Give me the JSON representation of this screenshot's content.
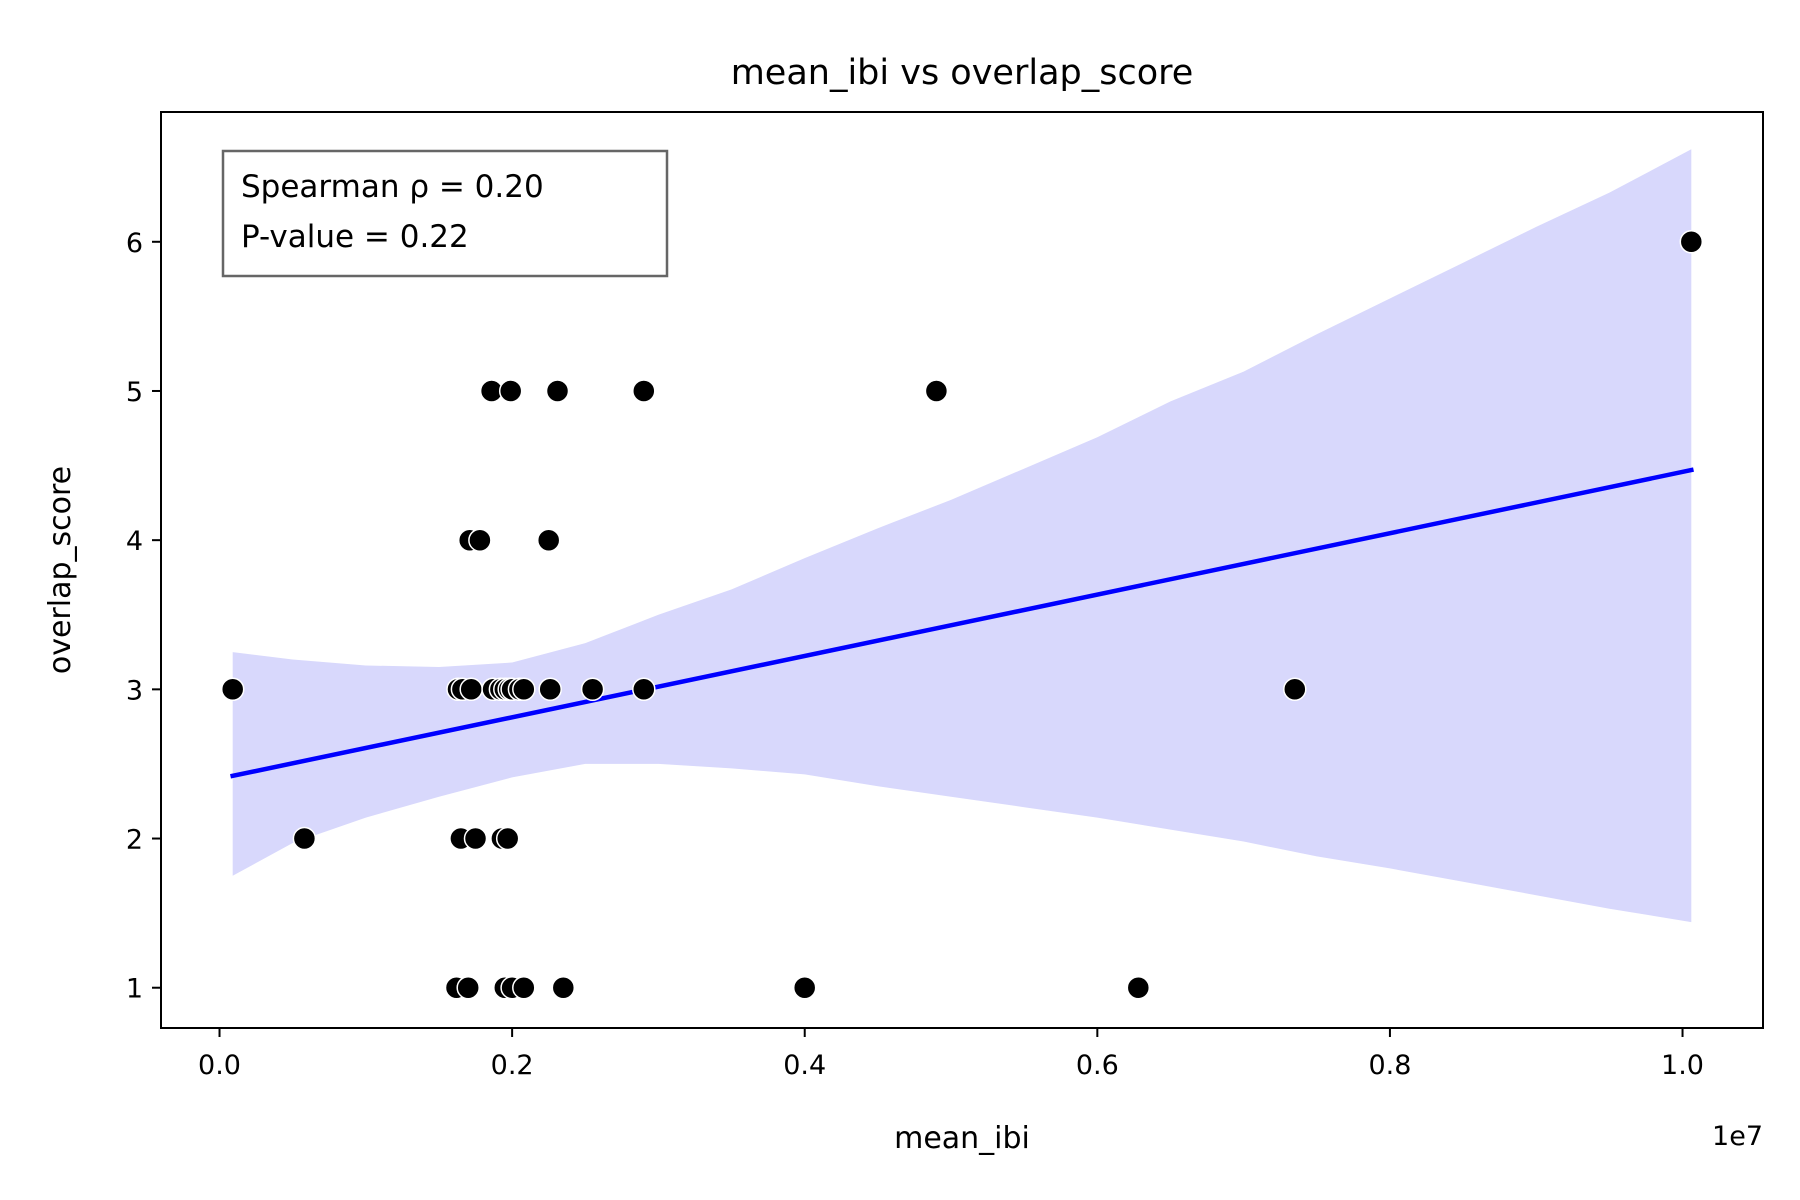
{
  "chart_data": {
    "type": "scatter",
    "title": "mean_ibi vs overlap_score",
    "xlabel": "mean_ibi",
    "ylabel": "overlap_score",
    "x_multiplier_label": "1e7",
    "xlim": [
      -0.04,
      1.055
    ],
    "ylim": [
      0.73,
      6.87
    ],
    "x_ticks": [
      0.0,
      0.2,
      0.4,
      0.6,
      0.8,
      1.0
    ],
    "x_tick_labels": [
      "0.0",
      "0.2",
      "0.4",
      "0.6",
      "0.8",
      "1.0"
    ],
    "y_ticks": [
      1,
      2,
      3,
      4,
      5,
      6
    ],
    "y_tick_labels": [
      "1",
      "2",
      "3",
      "4",
      "5",
      "6"
    ],
    "grid": false,
    "annotation": {
      "lines": [
        "Spearman ρ = 0.20",
        "P-value = 0.22"
      ]
    },
    "points": {
      "x": [
        0.009,
        0.058,
        0.163,
        0.166,
        0.172,
        0.187,
        0.192,
        0.195,
        0.198,
        0.2,
        0.205,
        0.208,
        0.226,
        0.255,
        0.29,
        0.735,
        0.165,
        0.175,
        0.193,
        0.197,
        0.171,
        0.178,
        0.225,
        0.186,
        0.199,
        0.231,
        0.29,
        0.49,
        1.006,
        0.162,
        0.17,
        0.195,
        0.2,
        0.208,
        0.235,
        0.4,
        0.628
      ],
      "y": [
        3,
        2,
        3,
        3,
        3,
        3,
        3,
        3,
        3,
        3,
        3,
        3,
        3,
        3,
        3,
        3,
        2,
        2,
        2,
        2,
        4,
        4,
        4,
        5,
        5,
        5,
        5,
        5,
        6,
        1,
        1,
        1,
        1,
        1,
        1,
        1,
        1
      ],
      "color": "#000000",
      "edge_color": "#ffffff"
    },
    "regression": {
      "x": [
        0.009,
        1.006
      ],
      "y": [
        2.42,
        4.47
      ],
      "color": "#0000ff"
    },
    "confidence_band": {
      "x": [
        0.009,
        0.05,
        0.1,
        0.15,
        0.2,
        0.25,
        0.3,
        0.35,
        0.4,
        0.45,
        0.5,
        0.55,
        0.6,
        0.65,
        0.7,
        0.75,
        0.8,
        0.85,
        0.9,
        0.95,
        1.006
      ],
      "upper": [
        3.25,
        3.2,
        3.16,
        3.15,
        3.18,
        3.31,
        3.5,
        3.67,
        3.88,
        4.08,
        4.27,
        4.48,
        4.69,
        4.93,
        5.13,
        5.38,
        5.62,
        5.86,
        6.1,
        6.33,
        6.62
      ],
      "lower": [
        1.75,
        1.97,
        2.14,
        2.28,
        2.41,
        2.5,
        2.5,
        2.47,
        2.43,
        2.35,
        2.28,
        2.21,
        2.14,
        2.06,
        1.98,
        1.88,
        1.8,
        1.71,
        1.62,
        1.53,
        1.44
      ],
      "color": "#d8d8fc"
    }
  }
}
